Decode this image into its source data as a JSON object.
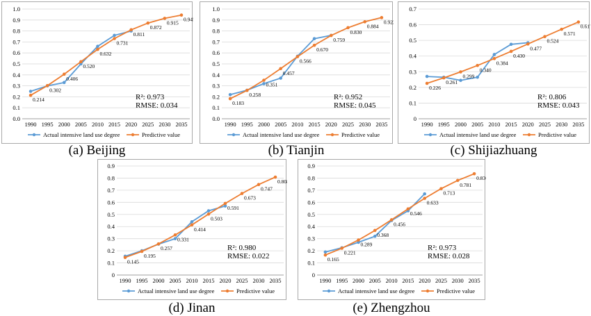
{
  "colors": {
    "actual": "#5b9bd5",
    "predictive": "#ed7d31",
    "grid": "#d9d9d9",
    "axis": "#000000"
  },
  "chart_data": [
    {
      "type": "line",
      "caption": "(a) Beijing",
      "x": [
        1990,
        1995,
        2000,
        2005,
        2010,
        2015,
        2020,
        2025,
        2030,
        2035
      ],
      "ylim": [
        0.0,
        1.0
      ],
      "ytick_step": 0.1,
      "ytick_labels": [
        "0.0",
        "0.1",
        "0.2",
        "0.3",
        "0.4",
        "0.5",
        "0.6",
        "0.7",
        "0.8",
        "0.9",
        "1.0"
      ],
      "grid": true,
      "legend_position": "bottom",
      "series": [
        {
          "name": "Actual intensive land use degree",
          "color": "#5b9bd5",
          "values": [
            0.25,
            0.3,
            0.33,
            0.5,
            0.66,
            0.76,
            0.8,
            null,
            null,
            null
          ]
        },
        {
          "name": "Predictive value",
          "color": "#ed7d31",
          "values": [
            0.214,
            0.302,
            0.406,
            0.52,
            0.632,
            0.731,
            0.811,
            0.872,
            0.915,
            0.945
          ],
          "labels": [
            "0.214",
            "0.302",
            "0.406",
            "0.520",
            "0.632",
            "0.731",
            "0.811",
            "0.872",
            "0.915",
            "0.945"
          ]
        }
      ],
      "stats": {
        "r2": "R²: 0.973",
        "rmse": "RMSE: 0.034"
      }
    },
    {
      "type": "line",
      "caption": "(b) Tianjin",
      "x": [
        1990,
        1995,
        2000,
        2005,
        2010,
        2015,
        2020,
        2025,
        2030,
        2035
      ],
      "ylim": [
        0.0,
        1.0
      ],
      "ytick_step": 0.1,
      "ytick_labels": [
        "0.0",
        "0.1",
        "0.2",
        "0.3",
        "0.4",
        "0.5",
        "0.6",
        "0.7",
        "0.8",
        "0.9",
        "1.0"
      ],
      "grid": true,
      "legend_position": "bottom",
      "series": [
        {
          "name": "Actual intensive land use degree",
          "color": "#5b9bd5",
          "values": [
            0.22,
            0.26,
            0.32,
            0.37,
            0.57,
            0.73,
            0.76,
            null,
            null,
            null
          ]
        },
        {
          "name": "Predictive value",
          "color": "#ed7d31",
          "values": [
            0.183,
            0.258,
            0.351,
            0.457,
            0.566,
            0.67,
            0.759,
            0.83,
            0.884,
            0.922
          ],
          "labels": [
            "0.183",
            "0.258",
            "0.351",
            "0.457",
            "0.566",
            "0.670",
            "0.759",
            "0.830",
            "0.884",
            "0.922"
          ]
        }
      ],
      "stats": {
        "r2": "R²: 0.952",
        "rmse": "RMSE: 0.045"
      }
    },
    {
      "type": "line",
      "caption": "(c) Shijiazhuang",
      "x": [
        1990,
        1995,
        2000,
        2005,
        2010,
        2015,
        2020,
        2025,
        2030,
        2035
      ],
      "ylim": [
        0.0,
        0.7
      ],
      "ytick_step": 0.1,
      "ytick_labels": [
        "0",
        "0.1",
        "0.2",
        "0.3",
        "0.4",
        "0.5",
        "0.6",
        "0.7"
      ],
      "grid": true,
      "legend_position": "bottom",
      "series": [
        {
          "name": "Actual intensive land use degree",
          "color": "#5b9bd5",
          "values": [
            0.27,
            0.265,
            0.245,
            0.265,
            0.41,
            0.475,
            0.485,
            null,
            null,
            null
          ]
        },
        {
          "name": "Predictive value",
          "color": "#ed7d31",
          "values": [
            0.226,
            0.261,
            0.299,
            0.34,
            0.384,
            0.43,
            0.477,
            0.524,
            0.571,
            0.617
          ],
          "labels": [
            "0.226",
            "0.261",
            "0.299",
            "0.340",
            "0.384",
            "0.430",
            "0.477",
            "0.524",
            "0.571",
            "0.617"
          ]
        }
      ],
      "stats": {
        "r2": "R²: 0.806",
        "rmse": "RMSE: 0.043"
      }
    },
    {
      "type": "line",
      "caption": "(d) Jinan",
      "x": [
        1990,
        1995,
        2000,
        2005,
        2010,
        2015,
        2020,
        2025,
        2030,
        2035
      ],
      "ylim": [
        0.0,
        0.9
      ],
      "ytick_step": 0.1,
      "ytick_labels": [
        "0",
        "0.1",
        "0.2",
        "0.3",
        "0.4",
        "0.5",
        "0.6",
        "0.7",
        "0.8",
        "0.9"
      ],
      "grid": true,
      "legend_position": "bottom",
      "series": [
        {
          "name": "Actual intensive land use degree",
          "color": "#5b9bd5",
          "values": [
            0.155,
            0.2,
            0.255,
            0.3,
            0.44,
            0.53,
            0.57,
            null,
            null,
            null
          ]
        },
        {
          "name": "Predictive value",
          "color": "#ed7d31",
          "values": [
            0.145,
            0.195,
            0.257,
            0.331,
            0.414,
            0.503,
            0.591,
            0.673,
            0.747,
            0.808
          ],
          "labels": [
            "0.145",
            "0.195",
            "0.257",
            "0.331",
            "0.414",
            "0.503",
            "0.591",
            "0.673",
            "0.747",
            "0.808"
          ]
        }
      ],
      "stats": {
        "r2": "R²: 0.980",
        "rmse": "RMSE: 0.022"
      }
    },
    {
      "type": "line",
      "caption": "(e) Zhengzhou",
      "x": [
        1990,
        1995,
        2000,
        2005,
        2010,
        2015,
        2020,
        2025,
        2030,
        2035
      ],
      "ylim": [
        0.0,
        0.9
      ],
      "ytick_step": 0.1,
      "ytick_labels": [
        "0",
        "0.1",
        "0.2",
        "0.3",
        "0.4",
        "0.5",
        "0.6",
        "0.7",
        "0.8",
        "0.9"
      ],
      "grid": true,
      "legend_position": "bottom",
      "series": [
        {
          "name": "Actual intensive land use degree",
          "color": "#5b9bd5",
          "values": [
            0.19,
            0.225,
            0.27,
            0.32,
            0.45,
            0.53,
            0.67,
            null,
            null,
            null
          ]
        },
        {
          "name": "Predictive value",
          "color": "#ed7d31",
          "values": [
            0.165,
            0.221,
            0.289,
            0.368,
            0.456,
            0.546,
            0.633,
            0.713,
            0.781,
            0.836
          ],
          "labels": [
            "0.165",
            "0.221",
            "0.289",
            "0.368",
            "0.456",
            "0.546",
            "0.633",
            "0.713",
            "0.781",
            "0.836"
          ]
        }
      ],
      "stats": {
        "r2": "R²: 0.973",
        "rmse": "RMSE: 0.028"
      }
    }
  ]
}
